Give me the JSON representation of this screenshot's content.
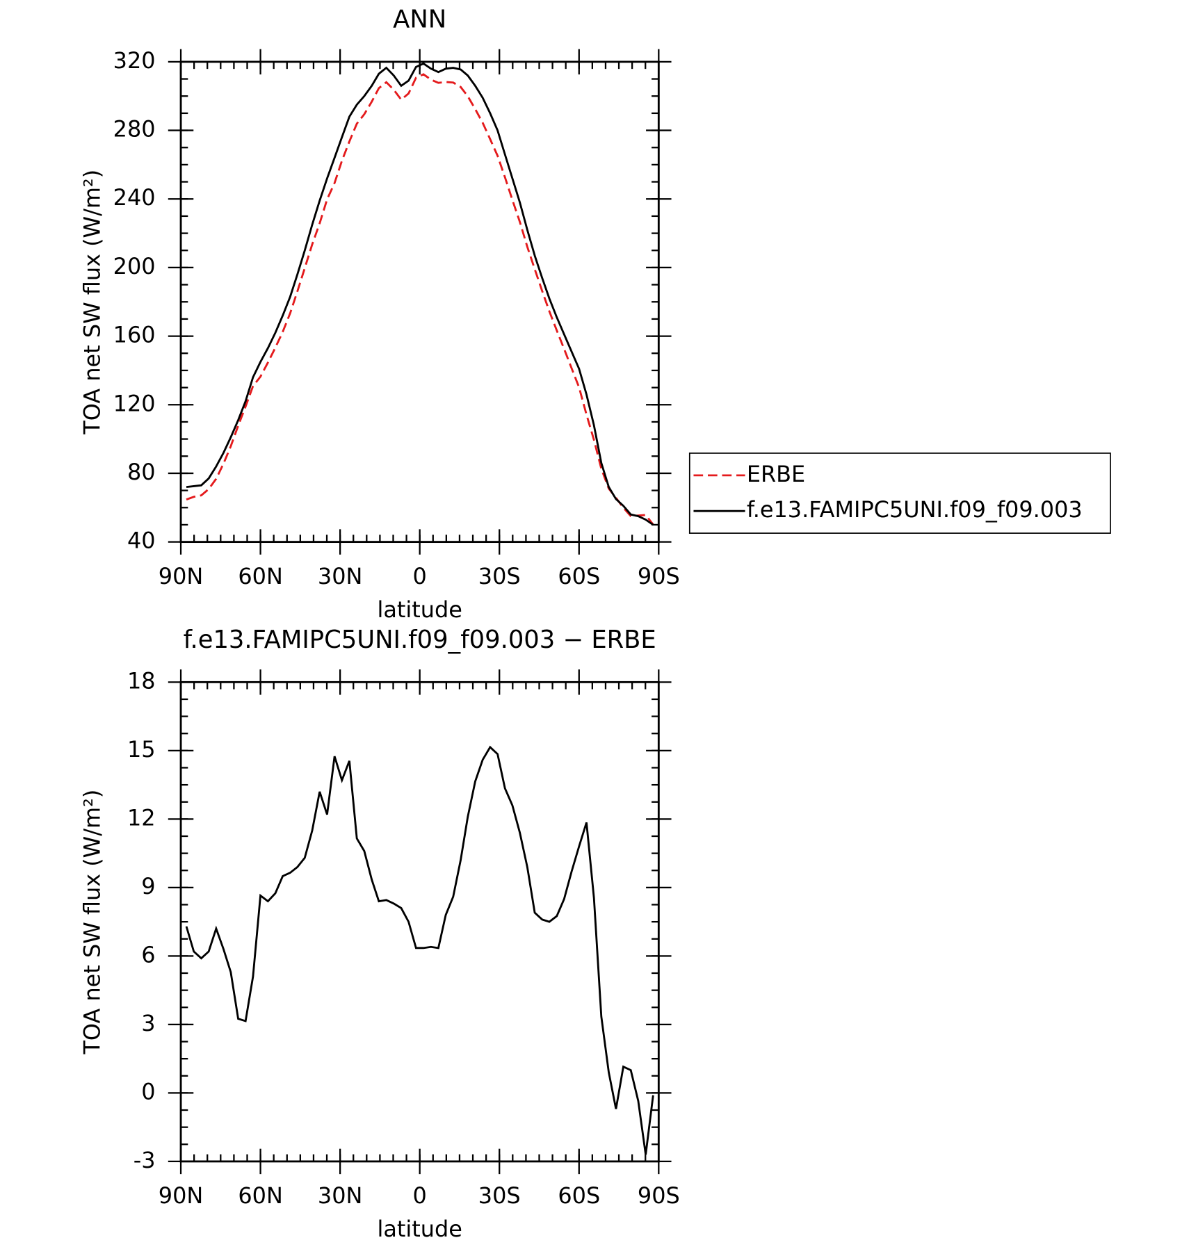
{
  "chart_data": [
    {
      "type": "line",
      "title": "ANN",
      "xlabel": "latitude",
      "ylabel": "TOA net SW flux (W/m²)",
      "x": [
        87.9,
        85.1,
        82.3,
        79.5,
        76.7,
        73.9,
        71.2,
        68.4,
        65.6,
        62.8,
        60.0,
        57.2,
        54.4,
        51.6,
        48.8,
        46.1,
        43.3,
        40.5,
        37.7,
        34.9,
        32.1,
        29.3,
        26.5,
        23.7,
        20.9,
        18.1,
        15.4,
        12.6,
        9.8,
        7.0,
        4.2,
        1.4,
        -1.4,
        -4.2,
        -7.0,
        -9.8,
        -12.6,
        -15.4,
        -18.1,
        -20.9,
        -23.7,
        -26.5,
        -29.3,
        -32.1,
        -34.9,
        -37.7,
        -40.5,
        -43.3,
        -46.1,
        -48.8,
        -51.6,
        -54.4,
        -57.2,
        -60.0,
        -62.8,
        -65.6,
        -68.4,
        -71.2,
        -73.9,
        -76.7,
        -79.5,
        -82.3,
        -85.1,
        -87.9
      ],
      "series": [
        {
          "name": "ERBE",
          "color": "#e41a1c",
          "dash": true,
          "values": [
            64.7,
            66.3,
            67.1,
            70.8,
            76.8,
            85.7,
            95.7,
            107.8,
            118.9,
            130.9,
            136.4,
            144.6,
            153.3,
            162.5,
            173.4,
            186.1,
            199.7,
            213.5,
            225.8,
            239.8,
            249.3,
            262.3,
            273.5,
            283.9,
            289.4,
            296.7,
            304.6,
            308.1,
            303.7,
            297.9,
            301.5,
            310.7,
            312.7,
            309.6,
            307.7,
            308.2,
            307.9,
            305.3,
            299.9,
            292.4,
            284.4,
            274.9,
            265.2,
            252.7,
            239.4,
            226.6,
            212.1,
            199.1,
            186.4,
            174.5,
            163.3,
            152.5,
            141.3,
            130.2,
            114.2,
            99.5,
            82.7,
            71.1,
            65.7,
            59.9,
            55,
            55.4,
            55.7,
            50.1
          ]
        },
        {
          "name": "f.e13.FAMIPC5UNI.f09_f09.003",
          "color": "#000000",
          "dash": false,
          "values": [
            72,
            72.5,
            73,
            77,
            84,
            92,
            101,
            111,
            122,
            136,
            145,
            153,
            162,
            172,
            183,
            196,
            210,
            225,
            239,
            252,
            264,
            276,
            288,
            295,
            300,
            306,
            313,
            316.5,
            312,
            306,
            309,
            317,
            319,
            316,
            314,
            316,
            316.5,
            315.5,
            312,
            306,
            299,
            290,
            280,
            266,
            252,
            238,
            222,
            207,
            194,
            182,
            171,
            161,
            151,
            141,
            126,
            108,
            86,
            72,
            65,
            61,
            56,
            55,
            53,
            50
          ]
        }
      ],
      "xlim": [
        90,
        -90
      ],
      "xticks": [
        {
          "value": 90,
          "label": "90N"
        },
        {
          "value": 60,
          "label": "60N"
        },
        {
          "value": 30,
          "label": "30N"
        },
        0,
        {
          "value": -30,
          "label": "30S"
        },
        {
          "value": -60,
          "label": "60S"
        },
        {
          "value": -90,
          "label": "90S"
        }
      ],
      "ylim": [
        40,
        320
      ],
      "yticks": [
        40,
        80,
        120,
        160,
        200,
        240,
        280,
        320
      ],
      "legend": "right"
    },
    {
      "type": "line",
      "title": "f.e13.FAMIPC5UNI.f09_f09.003 − ERBE",
      "xlabel": "latitude",
      "ylabel": "TOA net SW flux (W/m²)",
      "x": [
        87.9,
        85.1,
        82.3,
        79.5,
        76.7,
        73.9,
        71.2,
        68.4,
        65.6,
        62.8,
        60.0,
        57.2,
        54.4,
        51.6,
        48.8,
        46.1,
        43.3,
        40.5,
        37.7,
        34.9,
        32.1,
        29.3,
        26.5,
        23.7,
        20.9,
        18.1,
        15.4,
        12.6,
        9.8,
        7.0,
        4.2,
        1.4,
        -1.4,
        -4.2,
        -7.0,
        -9.8,
        -12.6,
        -15.4,
        -18.1,
        -20.9,
        -23.7,
        -26.5,
        -29.3,
        -32.1,
        -34.9,
        -37.7,
        -40.5,
        -43.3,
        -46.1,
        -48.8,
        -51.6,
        -54.4,
        -57.2,
        -60.0,
        -62.8,
        -65.6,
        -68.4,
        -71.2,
        -73.9,
        -76.7,
        -79.5,
        -82.3,
        -85.1,
        -87.9
      ],
      "color": "#000000",
      "values": [
        7.3,
        6.2,
        5.9,
        6.2,
        7.2,
        6.3,
        5.3,
        3.25,
        3.15,
        5.1,
        8.65,
        8.4,
        8.75,
        9.5,
        9.65,
        9.9,
        10.3,
        11.5,
        13.2,
        12.2,
        14.75,
        13.7,
        14.55,
        11.15,
        10.6,
        9.35,
        8.4,
        8.45,
        8.3,
        8.1,
        7.5,
        6.35,
        6.35,
        6.4,
        6.35,
        7.8,
        8.6,
        10.2,
        12.1,
        13.65,
        14.6,
        15.15,
        14.85,
        13.35,
        12.6,
        11.4,
        9.9,
        7.9,
        7.6,
        7.5,
        7.75,
        8.5,
        9.7,
        10.8,
        11.85,
        8.55,
        3.35,
        0.9,
        -0.7,
        1.15,
        1.0,
        -0.35,
        -2.7,
        -0.1
      ],
      "xlim": [
        90,
        -90
      ],
      "xticks": [
        {
          "value": 90,
          "label": "90N"
        },
        {
          "value": 60,
          "label": "60N"
        },
        {
          "value": 30,
          "label": "30N"
        },
        0,
        {
          "value": -30,
          "label": "30S"
        },
        {
          "value": -60,
          "label": "60S"
        },
        {
          "value": -90,
          "label": "90S"
        }
      ],
      "ylim": [
        -3,
        18
      ],
      "yticks": [
        -3,
        0,
        3,
        6,
        9,
        12,
        15,
        18
      ]
    }
  ]
}
